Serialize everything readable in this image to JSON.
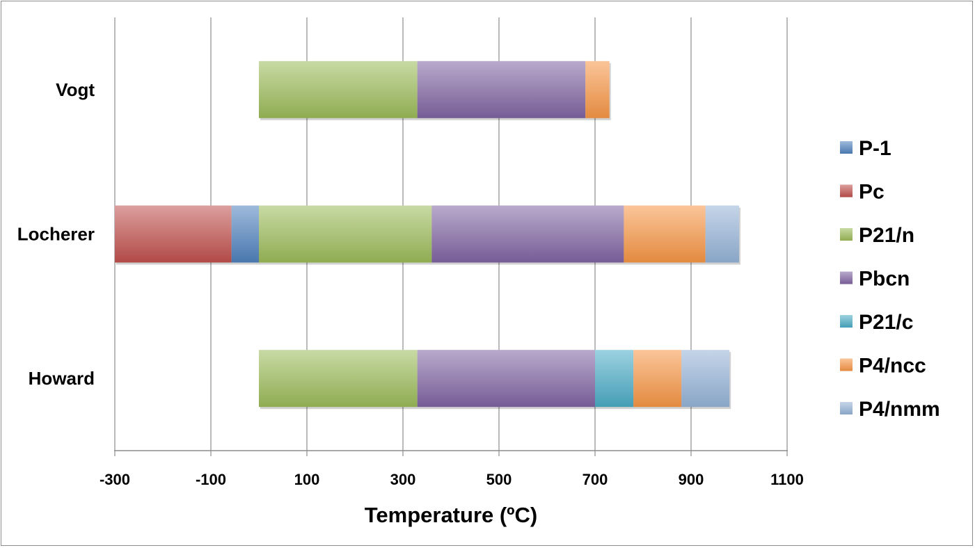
{
  "chart_data": {
    "type": "bar",
    "orientation": "horizontal",
    "stacked": true,
    "xlabel": "Temperature (ºC)",
    "xlim": [
      -300,
      1100
    ],
    "xticks": [
      -300,
      -100,
      100,
      300,
      500,
      700,
      900,
      1100
    ],
    "grid": true,
    "legend_position": "right",
    "categories": [
      "Vogt",
      "Locherer",
      "Howard"
    ],
    "phases": [
      {
        "name": "P-1",
        "color": "#4f81bd"
      },
      {
        "name": "Pc",
        "color": "#c0504d"
      },
      {
        "name": "P21/n",
        "color": "#9bbb59"
      },
      {
        "name": "Pbcn",
        "color": "#8064a2"
      },
      {
        "name": "P21/c",
        "color": "#4bacc6"
      },
      {
        "name": "P4/ncc",
        "color": "#f79646"
      },
      {
        "name": "P4/nmm",
        "color": "#95b3d7"
      }
    ],
    "bars": [
      {
        "category": "Vogt",
        "segments": [
          {
            "phase": "P21/n",
            "start": 0,
            "end": 330
          },
          {
            "phase": "Pbcn",
            "start": 330,
            "end": 680
          },
          {
            "phase": "P4/ncc",
            "start": 680,
            "end": 730
          }
        ]
      },
      {
        "category": "Locherer",
        "segments": [
          {
            "phase": "Pc",
            "start": -300,
            "end": -57
          },
          {
            "phase": "P-1",
            "start": -57,
            "end": 0
          },
          {
            "phase": "P21/n",
            "start": 0,
            "end": 360
          },
          {
            "phase": "Pbcn",
            "start": 360,
            "end": 760
          },
          {
            "phase": "P4/ncc",
            "start": 760,
            "end": 930
          },
          {
            "phase": "P4/nmm",
            "start": 930,
            "end": 1000
          }
        ]
      },
      {
        "category": "Howard",
        "segments": [
          {
            "phase": "P21/n",
            "start": 0,
            "end": 330
          },
          {
            "phase": "Pbcn",
            "start": 330,
            "end": 700
          },
          {
            "phase": "P21/c",
            "start": 700,
            "end": 780
          },
          {
            "phase": "P4/ncc",
            "start": 780,
            "end": 880
          },
          {
            "phase": "P4/nmm",
            "start": 880,
            "end": 980
          }
        ]
      }
    ]
  }
}
